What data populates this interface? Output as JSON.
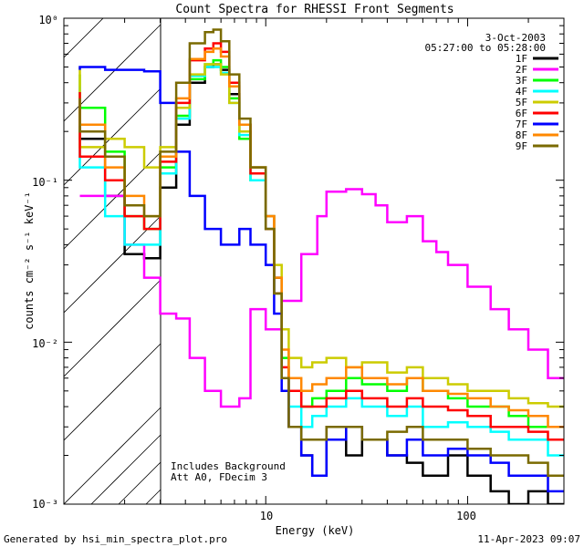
{
  "chart_data": {
    "type": "line",
    "title": "Count Spectra for RHESSI Front Segments",
    "xlabel": "Energy (keV)",
    "ylabel": "counts cm⁻² s⁻¹ keV⁻¹",
    "x_scale": "log",
    "y_scale": "log",
    "xlim": [
      1,
      300
    ],
    "ylim": [
      0.001,
      1
    ],
    "x_ticks": [
      {
        "v": 10,
        "label": "10"
      },
      {
        "v": 100,
        "label": "100"
      }
    ],
    "y_ticks": [
      {
        "v": 1,
        "label": "10⁰"
      },
      {
        "v": 0.1,
        "label": "10⁻¹"
      },
      {
        "v": 0.01,
        "label": "10⁻²"
      },
      {
        "v": 0.001,
        "label": "10⁻³"
      }
    ],
    "date": "3-Oct-2003",
    "time_range": "05:27:00 to 05:28:00",
    "excluded_region_max_kev": 3,
    "annotations": [
      "Includes Background",
      "Att A0, FDecim 3"
    ],
    "series": [
      {
        "name": "1F",
        "color": "#000000",
        "x": [
          1.2,
          1.6,
          2.0,
          2.5,
          3.0,
          3.6,
          4.2,
          5.0,
          5.5,
          6.0,
          6.6,
          7.4,
          8.4,
          10,
          11,
          12,
          13,
          15,
          17,
          20,
          25,
          30,
          40,
          50,
          60,
          80,
          100,
          130,
          160,
          200,
          250,
          300
        ],
        "y": [
          0.32,
          0.18,
          0.08,
          0.035,
          0.033,
          0.09,
          0.22,
          0.4,
          0.5,
          0.52,
          0.48,
          0.34,
          0.2,
          0.12,
          0.06,
          0.025,
          0.006,
          0.003,
          0.002,
          0.0015,
          0.003,
          0.002,
          0.0025,
          0.002,
          0.0018,
          0.0015,
          0.002,
          0.0015,
          0.0012,
          0.001,
          0.0012,
          0.001
        ]
      },
      {
        "name": "2F",
        "color": "#ff00ff",
        "x": [
          1.2,
          2.0,
          2.5,
          3.0,
          3.6,
          4.2,
          5.0,
          6.0,
          7.4,
          8.4,
          10,
          12,
          15,
          18,
          20,
          25,
          30,
          35,
          40,
          50,
          60,
          70,
          80,
          100,
          130,
          160,
          200,
          250,
          300
        ],
        "y": [
          0.08,
          0.08,
          0.04,
          0.025,
          0.015,
          0.014,
          0.008,
          0.005,
          0.004,
          0.0045,
          0.016,
          0.012,
          0.018,
          0.035,
          0.06,
          0.085,
          0.088,
          0.082,
          0.07,
          0.055,
          0.06,
          0.042,
          0.036,
          0.03,
          0.022,
          0.016,
          0.012,
          0.009,
          0.006
        ]
      },
      {
        "name": "3F",
        "color": "#00ff00",
        "x": [
          1.2,
          1.6,
          2.0,
          2.5,
          3.0,
          3.6,
          4.2,
          5.0,
          5.5,
          6.0,
          6.6,
          7.4,
          8.4,
          10,
          11,
          12,
          13,
          15,
          17,
          20,
          25,
          30,
          40,
          50,
          60,
          80,
          100,
          130,
          160,
          200,
          250,
          300
        ],
        "y": [
          0.45,
          0.28,
          0.15,
          0.06,
          0.05,
          0.12,
          0.25,
          0.42,
          0.52,
          0.55,
          0.5,
          0.32,
          0.18,
          0.1,
          0.05,
          0.02,
          0.008,
          0.005,
          0.004,
          0.0045,
          0.005,
          0.006,
          0.0055,
          0.005,
          0.006,
          0.005,
          0.0045,
          0.004,
          0.004,
          0.0035,
          0.003,
          0.003
        ]
      },
      {
        "name": "4F",
        "color": "#00ffff",
        "x": [
          1.2,
          1.6,
          2.0,
          2.5,
          3.0,
          3.6,
          4.2,
          5.0,
          5.5,
          6.0,
          6.6,
          7.4,
          8.4,
          10,
          11,
          12,
          13,
          15,
          17,
          20,
          25,
          30,
          40,
          50,
          60,
          80,
          100,
          130,
          160,
          200,
          250,
          300
        ],
        "y": [
          0.38,
          0.12,
          0.06,
          0.04,
          0.04,
          0.11,
          0.24,
          0.44,
          0.5,
          0.5,
          0.46,
          0.3,
          0.19,
          0.1,
          0.05,
          0.02,
          0.006,
          0.004,
          0.003,
          0.0035,
          0.004,
          0.0045,
          0.004,
          0.0035,
          0.004,
          0.003,
          0.0032,
          0.003,
          0.0028,
          0.0025,
          0.0025,
          0.002
        ]
      },
      {
        "name": "5F",
        "color": "#cccc00",
        "x": [
          1.2,
          1.6,
          2.0,
          2.5,
          3.0,
          3.6,
          4.2,
          5.0,
          5.5,
          6.0,
          6.6,
          7.4,
          8.4,
          10,
          11,
          12,
          13,
          15,
          17,
          20,
          25,
          30,
          40,
          50,
          60,
          80,
          100,
          130,
          160,
          200,
          250,
          300
        ],
        "y": [
          0.5,
          0.16,
          0.18,
          0.16,
          0.12,
          0.16,
          0.28,
          0.45,
          0.52,
          0.52,
          0.45,
          0.3,
          0.2,
          0.12,
          0.06,
          0.03,
          0.012,
          0.008,
          0.007,
          0.0075,
          0.008,
          0.007,
          0.0075,
          0.0065,
          0.007,
          0.006,
          0.0055,
          0.005,
          0.005,
          0.0045,
          0.0042,
          0.004
        ]
      },
      {
        "name": "6F",
        "color": "#ff0000",
        "x": [
          1.2,
          1.6,
          2.0,
          2.5,
          3.0,
          3.6,
          4.2,
          5.0,
          5.5,
          6.0,
          6.6,
          7.4,
          8.4,
          10,
          11,
          12,
          13,
          15,
          17,
          20,
          25,
          30,
          40,
          50,
          60,
          80,
          100,
          130,
          160,
          200,
          250,
          300
        ],
        "y": [
          0.35,
          0.14,
          0.1,
          0.06,
          0.05,
          0.13,
          0.3,
          0.55,
          0.65,
          0.7,
          0.62,
          0.4,
          0.22,
          0.11,
          0.05,
          0.02,
          0.007,
          0.005,
          0.004,
          0.004,
          0.0045,
          0.005,
          0.0045,
          0.004,
          0.0045,
          0.004,
          0.0038,
          0.0035,
          0.003,
          0.003,
          0.0028,
          0.0025
        ]
      },
      {
        "name": "7F",
        "color": "#0000ff",
        "x": [
          1.2,
          1.6,
          2.0,
          2.5,
          3.0,
          3.6,
          4.2,
          5.0,
          6.0,
          7.4,
          8.4,
          10,
          11,
          12,
          13,
          15,
          17,
          20,
          25,
          30,
          40,
          50,
          60,
          80,
          100,
          130,
          160,
          200,
          250,
          300
        ],
        "y": [
          0.48,
          0.5,
          0.48,
          0.48,
          0.47,
          0.3,
          0.15,
          0.08,
          0.05,
          0.04,
          0.05,
          0.04,
          0.03,
          0.015,
          0.005,
          0.003,
          0.002,
          0.0015,
          0.0025,
          0.003,
          0.0025,
          0.002,
          0.0025,
          0.002,
          0.0022,
          0.002,
          0.0018,
          0.0015,
          0.0015,
          0.0012
        ]
      },
      {
        "name": "8F",
        "color": "#ff8800",
        "x": [
          1.2,
          1.6,
          2.0,
          2.5,
          3.0,
          3.6,
          4.2,
          5.0,
          5.5,
          6.0,
          6.6,
          7.4,
          8.4,
          10,
          11,
          12,
          13,
          15,
          17,
          20,
          25,
          30,
          40,
          50,
          60,
          80,
          100,
          130,
          160,
          200,
          250,
          300
        ],
        "y": [
          0.28,
          0.22,
          0.12,
          0.08,
          0.06,
          0.14,
          0.32,
          0.56,
          0.62,
          0.65,
          0.58,
          0.38,
          0.22,
          0.12,
          0.06,
          0.025,
          0.009,
          0.006,
          0.005,
          0.0055,
          0.006,
          0.007,
          0.006,
          0.0055,
          0.006,
          0.005,
          0.0048,
          0.0045,
          0.004,
          0.0038,
          0.0035,
          0.003
        ]
      },
      {
        "name": "9F",
        "color": "#7a6a00",
        "x": [
          1.2,
          1.6,
          2.0,
          2.5,
          3.0,
          3.6,
          4.2,
          5.0,
          5.5,
          6.0,
          6.6,
          7.4,
          8.4,
          10,
          11,
          12,
          13,
          15,
          17,
          20,
          25,
          30,
          40,
          50,
          60,
          80,
          100,
          130,
          160,
          200,
          250,
          300
        ],
        "y": [
          0.32,
          0.2,
          0.14,
          0.07,
          0.06,
          0.15,
          0.4,
          0.7,
          0.82,
          0.85,
          0.72,
          0.45,
          0.24,
          0.12,
          0.05,
          0.02,
          0.006,
          0.003,
          0.0025,
          0.0025,
          0.003,
          0.003,
          0.0025,
          0.0028,
          0.003,
          0.0025,
          0.0025,
          0.0022,
          0.002,
          0.002,
          0.0018,
          0.0015
        ]
      }
    ]
  },
  "footer": {
    "generated_by": "Generated by hsi_min_spectra_plot.pro",
    "timestamp": "11-Apr-2023 09:07"
  }
}
